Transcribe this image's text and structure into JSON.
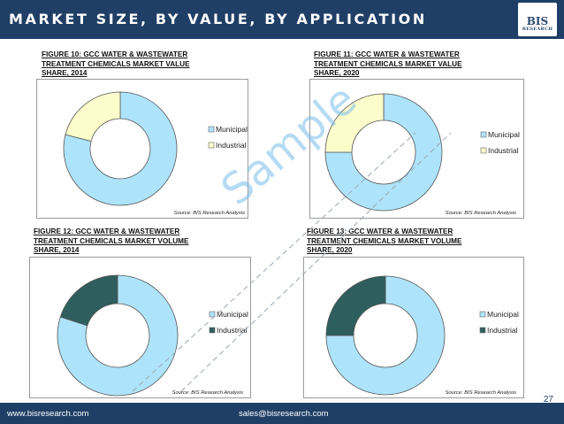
{
  "header": {
    "title": "MARKET SIZE, BY VALUE, BY APPLICATION"
  },
  "logo": {
    "main": "BIS",
    "sub": "RESEARCH"
  },
  "colors": {
    "header_bg": "#1f3f66",
    "municipal_value": "#aee4fb",
    "industrial_value": "#fdfccb",
    "municipal_volume": "#aee4fb",
    "industrial_volume": "#2e5e5d"
  },
  "figures": [
    {
      "title_lines": [
        "FIGURE 10: GCC WATER & WASTEWATER",
        "TREATMENT CHEMICALS MARKET VALUE",
        "SHARE, 2014"
      ],
      "source": "Source: BIS Research Analysis"
    },
    {
      "title_lines": [
        "FIGURE 11: GCC WATER & WASTEWATER",
        "TREATMENT CHEMICALS MARKET VALUE",
        "SHARE, 2020"
      ],
      "source": "Source: BIS Research Analysis"
    },
    {
      "title_lines": [
        "FIGURE 12: GCC WATER & WASTEWATER",
        "TREATMENT CHEMICALS MARKET VOLUME",
        "SHARE, 2014"
      ],
      "source": "Source: BIS Research Analysis"
    },
    {
      "title_lines": [
        "FIGURE 13: GCC WATER & WASTEWATER",
        "TREATMENT CHEMICALS MARKET VOLUME",
        "SHARE, 2020"
      ],
      "source": "Source: BIS Research Analysis"
    }
  ],
  "chart_data": [
    {
      "type": "pie",
      "donut": true,
      "categories": [
        "Municipal",
        "Industrial"
      ],
      "values": [
        79,
        21
      ],
      "colors": [
        "#aee4fb",
        "#fdfccb"
      ],
      "legend": "right"
    },
    {
      "type": "pie",
      "donut": true,
      "categories": [
        "Municipal",
        "Industrial"
      ],
      "values": [
        75,
        25
      ],
      "colors": [
        "#aee4fb",
        "#fdfccb"
      ],
      "legend": "right"
    },
    {
      "type": "pie",
      "donut": true,
      "categories": [
        "Municipal",
        "Industrial"
      ],
      "values": [
        80,
        20
      ],
      "colors": [
        "#aee4fb",
        "#2e5e5d"
      ],
      "legend": "right"
    },
    {
      "type": "pie",
      "donut": true,
      "categories": [
        "Municipal",
        "Industrial"
      ],
      "values": [
        75,
        25
      ],
      "colors": [
        "#aee4fb",
        "#2e5e5d"
      ],
      "legend": "right"
    }
  ],
  "watermark": "Sample",
  "footer": {
    "website": "www.bisresearch.com",
    "email": "sales@bisresearch.com",
    "page": "27"
  }
}
